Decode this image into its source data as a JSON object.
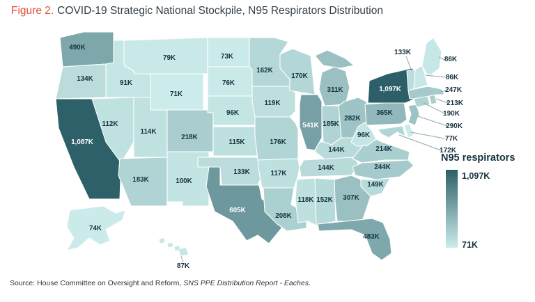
{
  "title": {
    "figure_label": "Figure 2.",
    "text": "COVID-19 Strategic National Stockpile, N95 Respirators Distribution"
  },
  "legend": {
    "title": "N95 respirators",
    "max_label": "1,097K",
    "min_label": "71K"
  },
  "source": {
    "prefix": "Source: House Committee on Oversight and Reform, ",
    "report": "SNS PPE Distribution Report - Eaches",
    "suffix": "."
  },
  "colors": {
    "figure_label": "#e84c3b",
    "title_text": "#333f48",
    "scale_min": "#cbecea",
    "scale_max": "#2d5f69",
    "state_border": "#ffffff",
    "label_dark": "#16323e",
    "label_light": "#ffffff",
    "callout_line": "#90a4a8",
    "source_text": "#333333"
  },
  "chart_data": {
    "type": "heatmap",
    "subtype": "us-state-choropleth",
    "title": "COVID-19 Strategic National Stockpile, N95 Respirators Distribution",
    "unit": "N95 respirators (eaches), thousands",
    "min": 71,
    "max": 1097,
    "legend_title": "N95 respirators",
    "states": [
      {
        "abbr": "WA",
        "name": "Washington",
        "value": 490,
        "label": "490K"
      },
      {
        "abbr": "OR",
        "name": "Oregon",
        "value": 134,
        "label": "134K"
      },
      {
        "abbr": "CA",
        "name": "California",
        "value": 1087,
        "label": "1,087K"
      },
      {
        "abbr": "NV",
        "name": "Nevada",
        "value": 112,
        "label": "112K"
      },
      {
        "abbr": "ID",
        "name": "Idaho",
        "value": 91,
        "label": "91K"
      },
      {
        "abbr": "MT",
        "name": "Montana",
        "value": 79,
        "label": "79K"
      },
      {
        "abbr": "WY",
        "name": "Wyoming",
        "value": 71,
        "label": "71K"
      },
      {
        "abbr": "UT",
        "name": "Utah",
        "value": 114,
        "label": "114K"
      },
      {
        "abbr": "CO",
        "name": "Colorado",
        "value": 218,
        "label": "218K"
      },
      {
        "abbr": "AZ",
        "name": "Arizona",
        "value": 183,
        "label": "183K"
      },
      {
        "abbr": "NM",
        "name": "New Mexico",
        "value": 100,
        "label": "100K"
      },
      {
        "abbr": "ND",
        "name": "North Dakota",
        "value": 73,
        "label": "73K"
      },
      {
        "abbr": "SD",
        "name": "South Dakota",
        "value": 76,
        "label": "76K"
      },
      {
        "abbr": "NE",
        "name": "Nebraska",
        "value": 96,
        "label": "96K"
      },
      {
        "abbr": "KS",
        "name": "Kansas",
        "value": 115,
        "label": "115K"
      },
      {
        "abbr": "OK",
        "name": "Oklahoma",
        "value": 133,
        "label": "133K"
      },
      {
        "abbr": "TX",
        "name": "Texas",
        "value": 605,
        "label": "605K"
      },
      {
        "abbr": "MN",
        "name": "Minnesota",
        "value": 162,
        "label": "162K"
      },
      {
        "abbr": "IA",
        "name": "Iowa",
        "value": 119,
        "label": "119K"
      },
      {
        "abbr": "MO",
        "name": "Missouri",
        "value": 176,
        "label": "176K"
      },
      {
        "abbr": "AR",
        "name": "Arkansas",
        "value": 117,
        "label": "117K"
      },
      {
        "abbr": "LA",
        "name": "Louisiana",
        "value": 208,
        "label": "208K"
      },
      {
        "abbr": "WI",
        "name": "Wisconsin",
        "value": 170,
        "label": "170K"
      },
      {
        "abbr": "IL",
        "name": "Illinois",
        "value": 541,
        "label": "541K"
      },
      {
        "abbr": "MI",
        "name": "Michigan",
        "value": 311,
        "label": "311K"
      },
      {
        "abbr": "IN",
        "name": "Indiana",
        "value": 185,
        "label": "185K"
      },
      {
        "abbr": "OH",
        "name": "Ohio",
        "value": 282,
        "label": "282K"
      },
      {
        "abbr": "KY",
        "name": "Kentucky",
        "value": 144,
        "label": "144K"
      },
      {
        "abbr": "TN",
        "name": "Tennessee",
        "value": 144,
        "label": "144K"
      },
      {
        "abbr": "WV",
        "name": "West Virginia",
        "value": 96,
        "label": "96K"
      },
      {
        "abbr": "VA",
        "name": "Virginia",
        "value": 214,
        "label": "214K"
      },
      {
        "abbr": "NC",
        "name": "North Carolina",
        "value": 244,
        "label": "244K"
      },
      {
        "abbr": "SC",
        "name": "South Carolina",
        "value": 149,
        "label": "149K"
      },
      {
        "abbr": "GA",
        "name": "Georgia",
        "value": 307,
        "label": "307K"
      },
      {
        "abbr": "AL",
        "name": "Alabama",
        "value": 152,
        "label": "152K"
      },
      {
        "abbr": "MS",
        "name": "Mississippi",
        "value": 118,
        "label": "118K"
      },
      {
        "abbr": "FL",
        "name": "Florida",
        "value": 483,
        "label": "483K"
      },
      {
        "abbr": "PA",
        "name": "Pennsylvania",
        "value": 365,
        "label": "365K"
      },
      {
        "abbr": "NY",
        "name": "New York",
        "value": 1097,
        "label": "1,097K"
      },
      {
        "abbr": "NJ",
        "name": "New Jersey",
        "value": 290,
        "label": "290K"
      },
      {
        "abbr": "DE",
        "name": "Delaware",
        "value": 77,
        "label": "77K"
      },
      {
        "abbr": "MD",
        "name": "Maryland",
        "value": 172,
        "label": "172K"
      },
      {
        "abbr": "CT",
        "name": "Connecticut",
        "value": 190,
        "label": "190K"
      },
      {
        "abbr": "RI",
        "name": "Rhode Island",
        "value": 213,
        "label": "213K"
      },
      {
        "abbr": "MA",
        "name": "Massachusetts",
        "value": 247,
        "label": "247K"
      },
      {
        "abbr": "VT",
        "name": "Vermont",
        "value": 133,
        "label": "133K"
      },
      {
        "abbr": "NH",
        "name": "New Hampshire",
        "value": 86,
        "label": "86K"
      },
      {
        "abbr": "ME",
        "name": "Maine",
        "value": 86,
        "label": "86K"
      },
      {
        "abbr": "AK",
        "name": "Alaska",
        "value": 74,
        "label": "74K"
      },
      {
        "abbr": "HI",
        "name": "Hawaii",
        "value": 87,
        "label": "87K"
      }
    ]
  }
}
